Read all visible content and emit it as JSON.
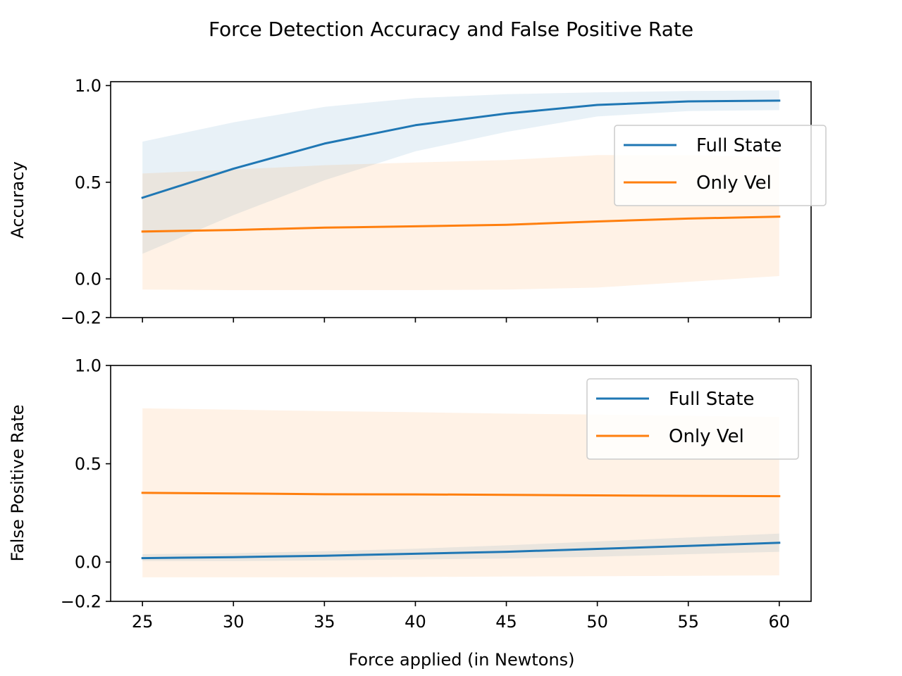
{
  "suptitle": "Force Detection Accuracy and False Positive Rate",
  "colors": {
    "Full State": "#1f77b4",
    "Only Vel": "#ff7f0e"
  },
  "chart_data": [
    {
      "type": "line",
      "title": "",
      "xlabel": "",
      "ylabel": "Accuracy",
      "x": [
        25,
        30,
        35,
        40,
        45,
        50,
        55,
        60
      ],
      "xlim": [
        23.25,
        61.75
      ],
      "ylim": [
        -0.2,
        1.02
      ],
      "yticks": [
        -0.2,
        0.0,
        0.5,
        1.0
      ],
      "ytick_labels": [
        "−0.2",
        "0.0",
        "0.5",
        "1.0"
      ],
      "show_xtick_labels": false,
      "legend_loc": "center right",
      "shaded_band": "mean ± spread",
      "series": [
        {
          "name": "Full State",
          "values": [
            0.42,
            0.57,
            0.7,
            0.795,
            0.855,
            0.9,
            0.918,
            0.922
          ],
          "lower": [
            0.13,
            0.33,
            0.51,
            0.66,
            0.76,
            0.84,
            0.868,
            0.873
          ],
          "upper": [
            0.71,
            0.81,
            0.89,
            0.935,
            0.955,
            0.965,
            0.972,
            0.975
          ]
        },
        {
          "name": "Only Vel",
          "values": [
            0.245,
            0.253,
            0.265,
            0.272,
            0.28,
            0.297,
            0.312,
            0.322
          ],
          "lower": [
            -0.055,
            -0.058,
            -0.058,
            -0.058,
            -0.055,
            -0.045,
            -0.015,
            0.015
          ],
          "upper": [
            0.545,
            0.565,
            0.588,
            0.602,
            0.615,
            0.64,
            0.64,
            0.63
          ]
        }
      ]
    },
    {
      "type": "line",
      "title": "",
      "xlabel": "Force applied (in Newtons)",
      "ylabel": "False Positive Rate",
      "x": [
        25,
        30,
        35,
        40,
        45,
        50,
        55,
        60
      ],
      "xlim": [
        23.25,
        61.75
      ],
      "ylim": [
        -0.2,
        1.0
      ],
      "yticks": [
        -0.2,
        0.0,
        0.5,
        1.0
      ],
      "ytick_labels": [
        "−0.2",
        "0.0",
        "0.5",
        "1.0"
      ],
      "xticks": [
        25,
        30,
        35,
        40,
        45,
        50,
        55,
        60
      ],
      "xtick_labels": [
        "25",
        "30",
        "35",
        "40",
        "45",
        "50",
        "55",
        "60"
      ],
      "show_xtick_labels": true,
      "legend_loc": "upper right",
      "shaded_band": "mean ± spread",
      "series": [
        {
          "name": "Full State",
          "values": [
            0.02,
            0.025,
            0.032,
            0.042,
            0.052,
            0.067,
            0.082,
            0.098
          ],
          "lower": [
            0.005,
            0.005,
            0.008,
            0.013,
            0.018,
            0.027,
            0.04,
            0.052
          ],
          "upper": [
            0.04,
            0.045,
            0.055,
            0.068,
            0.085,
            0.105,
            0.125,
            0.145
          ]
        },
        {
          "name": "Only Vel",
          "values": [
            0.352,
            0.349,
            0.345,
            0.344,
            0.342,
            0.339,
            0.337,
            0.335
          ],
          "lower": [
            -0.078,
            -0.078,
            -0.077,
            -0.076,
            -0.074,
            -0.072,
            -0.07,
            -0.068
          ],
          "upper": [
            0.782,
            0.775,
            0.768,
            0.762,
            0.755,
            0.75,
            0.744,
            0.738
          ]
        }
      ]
    }
  ]
}
